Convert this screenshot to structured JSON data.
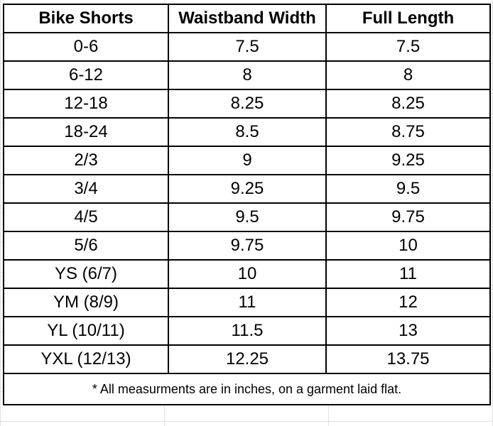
{
  "table": {
    "headers": [
      "Bike Shorts",
      "Waistband Width",
      "Full Length"
    ],
    "rows": [
      [
        "0-6",
        "7.5",
        "7.5"
      ],
      [
        "6-12",
        "8",
        "8"
      ],
      [
        "12-18",
        "8.25",
        "8.25"
      ],
      [
        "18-24",
        "8.5",
        "8.75"
      ],
      [
        "2/3",
        "9",
        "9.25"
      ],
      [
        "3/4",
        "9.25",
        "9.5"
      ],
      [
        "4/5",
        "9.5",
        "9.75"
      ],
      [
        "5/6",
        "9.75",
        "10"
      ],
      [
        "YS (6/7)",
        "10",
        "11"
      ],
      [
        "YM (8/9)",
        "11",
        "12"
      ],
      [
        "YL (10/11)",
        "11.5",
        "13"
      ],
      [
        "YXL (12/13)",
        "12.25",
        "13.75"
      ]
    ],
    "footnote": "* All measurments are in inches, on a garment laid flat."
  }
}
